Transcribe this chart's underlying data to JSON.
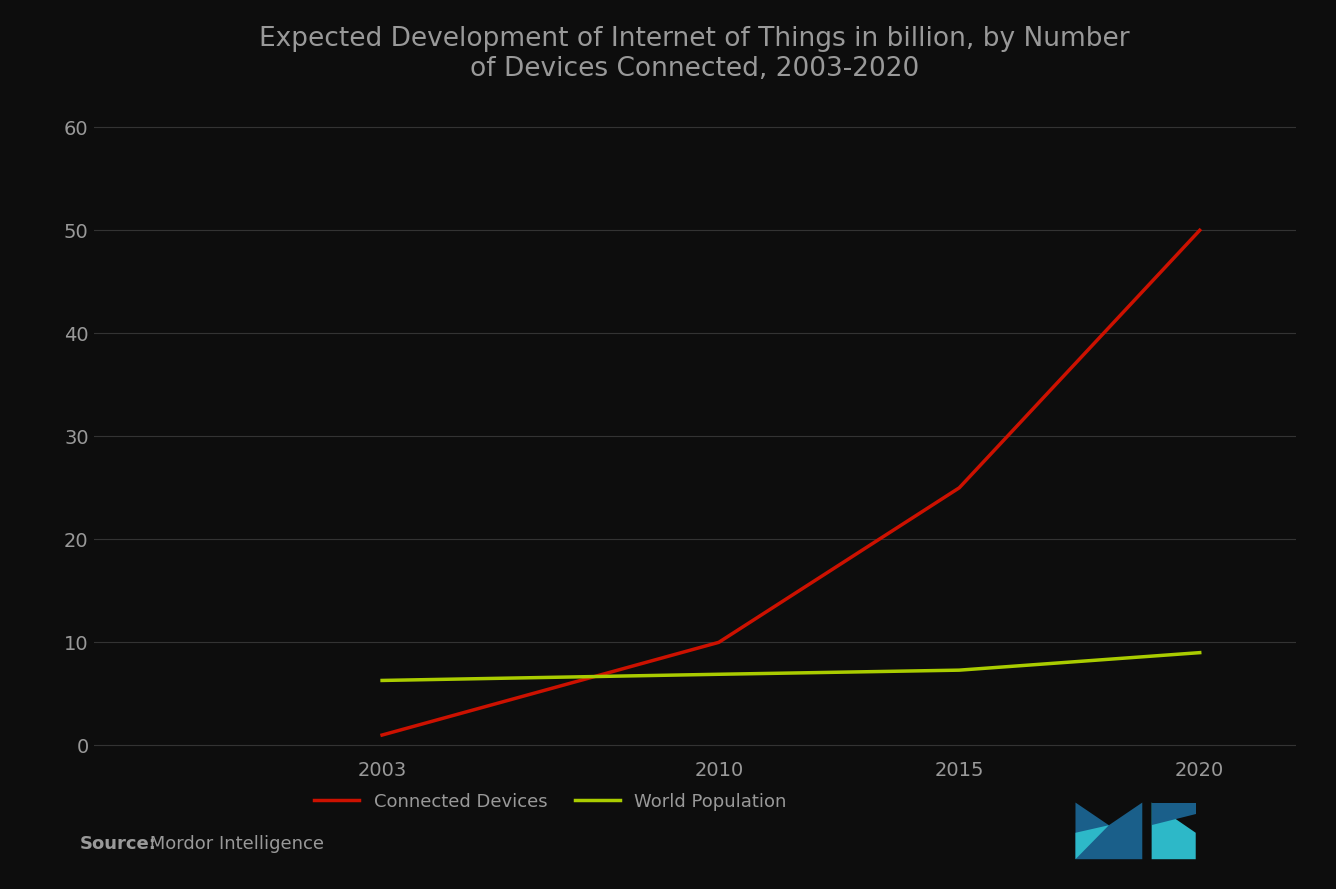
{
  "title": "Expected Development of Internet of Things in billion, by Number\nof Devices Connected, 2003-2020",
  "title_fontsize": 19,
  "background_color": "#0d0d0d",
  "plot_bg_color": "#0d0d0d",
  "text_color": "#999999",
  "grid_color": "#333333",
  "connected_devices": {
    "x": [
      2003,
      2010,
      2015,
      2020
    ],
    "y": [
      1,
      10,
      25,
      50
    ],
    "color": "#cc1100",
    "linewidth": 2.5,
    "label": "Connected Devices"
  },
  "world_population": {
    "x": [
      2003,
      2010,
      2015,
      2020
    ],
    "y": [
      6.3,
      6.9,
      7.3,
      9.0
    ],
    "color": "#aacc00",
    "linewidth": 2.5,
    "label": "World Population"
  },
  "ylim": [
    -1,
    62
  ],
  "yticks": [
    0,
    10,
    20,
    30,
    40,
    50,
    60
  ],
  "xlim": [
    1997,
    2022
  ],
  "xticks": [
    2003,
    2010,
    2015,
    2020
  ],
  "source_bold": "Source:",
  "source_text": " Mordor Intelligence",
  "source_fontsize": 13,
  "logo_colors": {
    "dark_blue": "#1a5f8a",
    "teal": "#2db8c8"
  }
}
